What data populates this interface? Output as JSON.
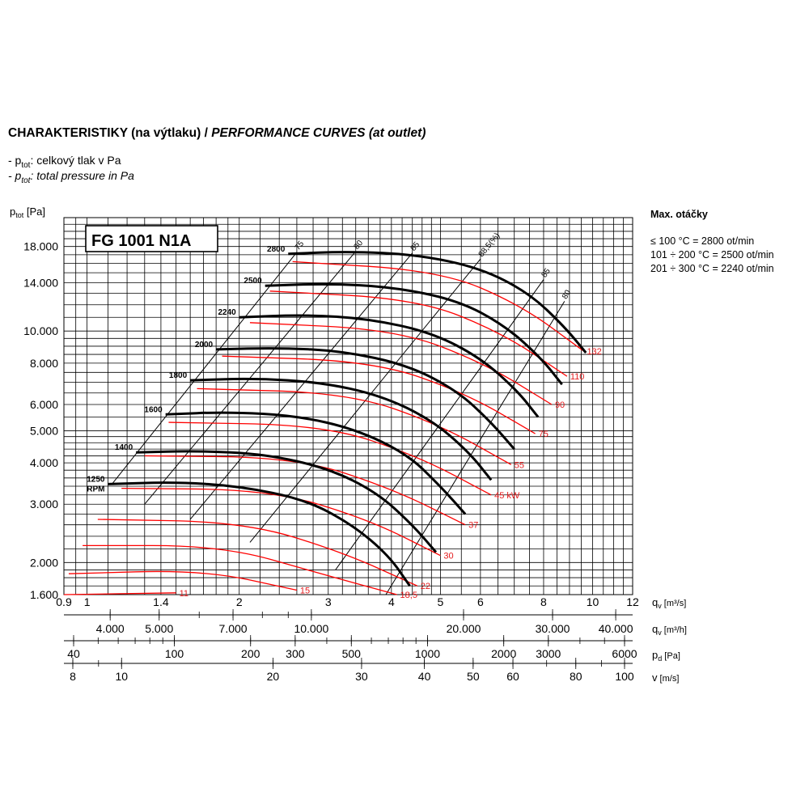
{
  "title": {
    "cz": "CHARAKTERISTIKY (na výtlaku) /",
    "en": "PERFORMANCE CURVES (at outlet)"
  },
  "legend": {
    "line1_prefix": "- p",
    "line1_sub": "tot",
    "line1_text": ": celkový tlak v Pa",
    "line2_prefix": "- p",
    "line2_sub": "tot",
    "line2_text": ": total pressure in Pa"
  },
  "max_speed": {
    "heading": "Max. otáčky",
    "rows": [
      "≤ 100 °C = 2800 ot/min",
      "101 ÷ 200 °C = 2500 ot/min",
      "201 ÷ 300 °C = 2240 ot/min"
    ]
  },
  "colors": {
    "grid": "#000000",
    "fan_curve": "#000000",
    "power_curve": "#ff0000",
    "power_label": "#e41a1c"
  },
  "chart_data": {
    "type": "line",
    "model_label": "FG 1001 N1A",
    "y_axis": {
      "label_main": "p",
      "label_sub": "tot",
      "label_unit": "[Pa]",
      "scale": "log",
      "range": [
        1600,
        22000
      ],
      "tick_labels": [
        "18.000",
        "14.000",
        "10.000",
        "8.000",
        "6.000",
        "5.000",
        "4.000",
        "3.000",
        "2.000",
        "1.600"
      ],
      "tick_values": [
        18000,
        14000,
        10000,
        8000,
        6000,
        5000,
        4000,
        3000,
        2000,
        1600
      ]
    },
    "x_axis": {
      "label_main": "q",
      "label_sub": "v",
      "label_unit": "[m³/s]",
      "scale": "log",
      "range": [
        0.9,
        12
      ],
      "tick_labels": [
        "0.9",
        "1",
        "1.4",
        "2",
        "3",
        "4",
        "5",
        "6",
        "8",
        "10",
        "12"
      ],
      "tick_values": [
        0.9,
        1,
        1.4,
        2,
        3,
        4,
        5,
        6,
        8,
        10,
        12
      ]
    },
    "secondary_axes": [
      {
        "name": "flow_m3h",
        "label_main": "q",
        "label_sub": "v",
        "label_unit": "[m³/h]",
        "tick_labels": [
          "4.000",
          "5.000",
          "7.000",
          "10.000",
          "20.000",
          "30.000",
          "40.000"
        ],
        "tick_values": [
          4000,
          5000,
          7000,
          10000,
          20000,
          30000,
          40000
        ]
      },
      {
        "name": "dynamic_pressure",
        "label_main": "p",
        "label_sub": "d",
        "label_unit": "[Pa]",
        "tick_labels": [
          "40",
          "100",
          "200",
          "300",
          "500",
          "1000",
          "2000",
          "3000",
          "6000"
        ],
        "tick_values": [
          40,
          100,
          200,
          300,
          500,
          1000,
          2000,
          3000,
          6000
        ]
      },
      {
        "name": "velocity",
        "label_main": "v",
        "label_sub": "",
        "label_unit": "[m/s]",
        "tick_labels": [
          "8",
          "10",
          "20",
          "30",
          "40",
          "50",
          "60",
          "80",
          "100"
        ],
        "tick_values": [
          8,
          10,
          20,
          30,
          40,
          50,
          60,
          80,
          100
        ]
      }
    ],
    "speed_curves": [
      {
        "rpm": "2800",
        "points": [
          [
            2.5,
            17100
          ],
          [
            3.3,
            17400
          ],
          [
            4.5,
            17000
          ],
          [
            6,
            15500
          ],
          [
            7.5,
            13000
          ],
          [
            8.8,
            10300
          ],
          [
            9.7,
            8600
          ]
        ]
      },
      {
        "rpm": "2500",
        "points": [
          [
            2.25,
            13700
          ],
          [
            3,
            13900
          ],
          [
            4,
            13600
          ],
          [
            5.4,
            12400
          ],
          [
            6.7,
            10400
          ],
          [
            7.9,
            8300
          ],
          [
            8.7,
            6900
          ]
        ]
      },
      {
        "rpm": "2240",
        "points": [
          [
            2.0,
            11000
          ],
          [
            2.7,
            11200
          ],
          [
            3.6,
            10900
          ],
          [
            4.8,
            9900
          ],
          [
            6,
            8300
          ],
          [
            7.1,
            6600
          ],
          [
            7.8,
            5500
          ]
        ]
      },
      {
        "rpm": "2000",
        "points": [
          [
            1.8,
            8800
          ],
          [
            2.4,
            8900
          ],
          [
            3.2,
            8700
          ],
          [
            4.3,
            7900
          ],
          [
            5.4,
            6600
          ],
          [
            6.3,
            5300
          ],
          [
            7.0,
            4400
          ]
        ]
      },
      {
        "rpm": "1800",
        "points": [
          [
            1.6,
            7100
          ],
          [
            2.15,
            7200
          ],
          [
            2.9,
            7000
          ],
          [
            3.8,
            6400
          ],
          [
            4.8,
            5400
          ],
          [
            5.7,
            4300
          ],
          [
            6.3,
            3550
          ]
        ]
      },
      {
        "rpm": "1600",
        "points": [
          [
            1.43,
            5600
          ],
          [
            1.9,
            5700
          ],
          [
            2.6,
            5550
          ],
          [
            3.4,
            5050
          ],
          [
            4.3,
            4250
          ],
          [
            5.0,
            3400
          ],
          [
            5.6,
            2800
          ]
        ]
      },
      {
        "rpm": "1400",
        "points": [
          [
            1.25,
            4300
          ],
          [
            1.65,
            4350
          ],
          [
            2.25,
            4250
          ],
          [
            3.0,
            3850
          ],
          [
            3.75,
            3250
          ],
          [
            4.4,
            2600
          ],
          [
            4.9,
            2150
          ]
        ]
      },
      {
        "rpm": "1250",
        "rpm_unit": "RPM",
        "points": [
          [
            1.1,
            3450
          ],
          [
            1.5,
            3500
          ],
          [
            2.0,
            3400
          ],
          [
            2.7,
            3100
          ],
          [
            3.35,
            2600
          ],
          [
            3.95,
            2100
          ],
          [
            4.35,
            1700
          ]
        ]
      }
    ],
    "power_curves": [
      {
        "label": "132",
        "points": [
          [
            2.55,
            16200
          ],
          [
            5,
            15200
          ],
          [
            7.2,
            12000
          ],
          [
            9.6,
            8700
          ]
        ]
      },
      {
        "label": "110",
        "points": [
          [
            2.3,
            13200
          ],
          [
            4.5,
            12500
          ],
          [
            6.6,
            9900
          ],
          [
            8.9,
            7300
          ]
        ]
      },
      {
        "label": "90",
        "points": [
          [
            2.1,
            10600
          ],
          [
            4.1,
            10100
          ],
          [
            6.1,
            8000
          ],
          [
            8.3,
            6000
          ]
        ]
      },
      {
        "label": "75",
        "points": [
          [
            1.85,
            8400
          ],
          [
            3.7,
            8100
          ],
          [
            5.6,
            6500
          ],
          [
            7.7,
            4900
          ]
        ]
      },
      {
        "label": "55",
        "points": [
          [
            1.65,
            6700
          ],
          [
            3.3,
            6500
          ],
          [
            5.0,
            5200
          ],
          [
            6.9,
            3950
          ]
        ]
      },
      {
        "label": "45 kW",
        "points": [
          [
            1.45,
            5300
          ],
          [
            2.95,
            5200
          ],
          [
            4.5,
            4200
          ],
          [
            6.3,
            3200
          ]
        ]
      },
      {
        "label": "37",
        "points": [
          [
            1.3,
            4200
          ],
          [
            2.6,
            4150
          ],
          [
            4.0,
            3350
          ],
          [
            5.6,
            2600
          ]
        ]
      },
      {
        "label": "30",
        "points": [
          [
            1.17,
            3350
          ],
          [
            2.3,
            3320
          ],
          [
            3.6,
            2700
          ],
          [
            5.0,
            2100
          ]
        ]
      },
      {
        "label": "22",
        "points": [
          [
            1.05,
            2700
          ],
          [
            2.05,
            2650
          ],
          [
            3.2,
            2150
          ],
          [
            4.5,
            1700
          ]
        ]
      },
      {
        "label": "18,5",
        "points": [
          [
            0.98,
            2250
          ],
          [
            1.85,
            2250
          ],
          [
            2.9,
            1850
          ],
          [
            4.1,
            1600
          ]
        ]
      },
      {
        "label": "15",
        "points": [
          [
            0.92,
            1850
          ],
          [
            1.7,
            1900
          ],
          [
            2.6,
            1650
          ]
        ]
      },
      {
        "label": "11",
        "points": [
          [
            0.9,
            1600
          ],
          [
            1.5,
            1620
          ]
        ]
      }
    ],
    "efficiency_lines": [
      {
        "label": "75",
        "points": [
          [
            1.12,
            3450
          ],
          [
            2.6,
            17300
          ]
        ]
      },
      {
        "label": "80",
        "points": [
          [
            1.3,
            3000
          ],
          [
            3.4,
            17400
          ]
        ]
      },
      {
        "label": "85",
        "points": [
          [
            1.6,
            2700
          ],
          [
            4.4,
            17200
          ]
        ]
      },
      {
        "label": "88,5(%)",
        "points": [
          [
            2.1,
            2300
          ],
          [
            6.0,
            16500
          ]
        ]
      },
      {
        "label": "85",
        "points": [
          [
            3.1,
            1900
          ],
          [
            8.0,
            14300
          ]
        ]
      },
      {
        "label": "80",
        "points": [
          [
            3.9,
            1600
          ],
          [
            8.8,
            12300
          ]
        ]
      }
    ]
  }
}
